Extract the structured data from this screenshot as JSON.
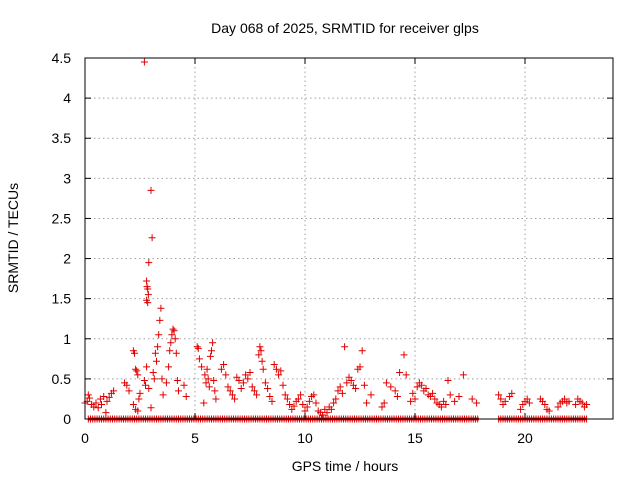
{
  "chart_data": {
    "type": "scatter",
    "title": "Day 068 of 2025, SRMTID for receiver glps",
    "xlabel": "GPS time / hours",
    "ylabel": "SRMTID / TECUs",
    "xlim": [
      0,
      24
    ],
    "ylim": [
      0,
      4.5
    ],
    "x_ticks": [
      0,
      5,
      10,
      15,
      20
    ],
    "y_ticks": [
      0,
      0.5,
      1,
      1.5,
      2,
      2.5,
      3,
      3.5,
      4,
      4.5
    ],
    "grid": true,
    "marker": "+",
    "series_color": "#e00000",
    "baseline_segments": [
      [
        0.15,
        17.9
      ],
      [
        18.8,
        22.8
      ]
    ],
    "baseline_value": 0,
    "series": [
      {
        "name": "SRMTID",
        "points": [
          [
            0.0,
            0.2
          ],
          [
            0.1,
            0.22
          ],
          [
            0.15,
            0.3
          ],
          [
            0.2,
            0.26
          ],
          [
            0.3,
            0.18
          ],
          [
            0.4,
            0.15
          ],
          [
            0.5,
            0.2
          ],
          [
            0.6,
            0.14
          ],
          [
            0.7,
            0.25
          ],
          [
            0.75,
            0.18
          ],
          [
            0.85,
            0.28
          ],
          [
            0.95,
            0.08
          ],
          [
            1.0,
            0.22
          ],
          [
            1.1,
            0.27
          ],
          [
            1.2,
            0.32
          ],
          [
            1.3,
            0.35
          ],
          [
            1.8,
            0.45
          ],
          [
            1.9,
            0.42
          ],
          [
            2.0,
            0.35
          ],
          [
            2.2,
            0.85
          ],
          [
            2.25,
            0.82
          ],
          [
            2.3,
            0.62
          ],
          [
            2.35,
            0.6
          ],
          [
            2.4,
            0.55
          ],
          [
            2.45,
            0.25
          ],
          [
            2.2,
            0.18
          ],
          [
            2.3,
            0.12
          ],
          [
            2.4,
            0.1
          ],
          [
            2.5,
            0.32
          ],
          [
            2.7,
            4.45
          ],
          [
            2.8,
            1.72
          ],
          [
            2.82,
            1.65
          ],
          [
            2.85,
            1.62
          ],
          [
            2.88,
            1.55
          ],
          [
            2.8,
            1.48
          ],
          [
            2.85,
            1.45
          ],
          [
            2.9,
            1.95
          ],
          [
            2.7,
            0.48
          ],
          [
            2.75,
            0.42
          ],
          [
            2.8,
            0.65
          ],
          [
            2.9,
            0.38
          ],
          [
            3.0,
            2.85
          ],
          [
            3.05,
            2.26
          ],
          [
            3.0,
            0.14
          ],
          [
            3.1,
            0.58
          ],
          [
            3.15,
            0.5
          ],
          [
            3.2,
            0.82
          ],
          [
            3.25,
            0.72
          ],
          [
            3.3,
            0.9
          ],
          [
            3.35,
            1.05
          ],
          [
            3.4,
            1.23
          ],
          [
            3.45,
            1.38
          ],
          [
            3.5,
            0.5
          ],
          [
            3.55,
            0.3
          ],
          [
            3.7,
            0.45
          ],
          [
            3.8,
            0.65
          ],
          [
            3.85,
            0.85
          ],
          [
            3.9,
            0.95
          ],
          [
            3.95,
            1.05
          ],
          [
            4.0,
            1.12
          ],
          [
            4.05,
            1.1
          ],
          [
            4.1,
            1.0
          ],
          [
            4.15,
            0.82
          ],
          [
            4.2,
            0.48
          ],
          [
            4.25,
            0.35
          ],
          [
            4.5,
            0.42
          ],
          [
            4.6,
            0.28
          ],
          [
            5.1,
            0.9
          ],
          [
            5.15,
            0.88
          ],
          [
            5.2,
            0.75
          ],
          [
            5.3,
            0.65
          ],
          [
            5.4,
            0.2
          ],
          [
            5.45,
            0.55
          ],
          [
            5.5,
            0.45
          ],
          [
            5.55,
            0.62
          ],
          [
            5.6,
            0.5
          ],
          [
            5.65,
            0.4
          ],
          [
            5.7,
            0.78
          ],
          [
            5.75,
            0.85
          ],
          [
            5.8,
            0.95
          ],
          [
            5.85,
            0.48
          ],
          [
            5.9,
            0.35
          ],
          [
            5.95,
            0.25
          ],
          [
            6.2,
            0.62
          ],
          [
            6.3,
            0.68
          ],
          [
            6.4,
            0.55
          ],
          [
            6.5,
            0.4
          ],
          [
            6.6,
            0.35
          ],
          [
            6.7,
            0.3
          ],
          [
            6.8,
            0.25
          ],
          [
            6.9,
            0.52
          ],
          [
            7.0,
            0.48
          ],
          [
            7.1,
            0.38
          ],
          [
            7.2,
            0.45
          ],
          [
            7.3,
            0.55
          ],
          [
            7.4,
            0.5
          ],
          [
            7.5,
            0.58
          ],
          [
            7.6,
            0.4
          ],
          [
            7.7,
            0.35
          ],
          [
            7.8,
            0.3
          ],
          [
            7.9,
            0.8
          ],
          [
            7.95,
            0.9
          ],
          [
            8.0,
            0.85
          ],
          [
            8.05,
            0.72
          ],
          [
            8.1,
            0.62
          ],
          [
            8.2,
            0.45
          ],
          [
            8.3,
            0.38
          ],
          [
            8.4,
            0.28
          ],
          [
            8.5,
            0.22
          ],
          [
            8.6,
            0.68
          ],
          [
            8.7,
            0.62
          ],
          [
            8.8,
            0.55
          ],
          [
            8.9,
            0.6
          ],
          [
            9.0,
            0.42
          ],
          [
            9.1,
            0.3
          ],
          [
            9.2,
            0.25
          ],
          [
            9.3,
            0.18
          ],
          [
            9.4,
            0.12
          ],
          [
            9.5,
            0.16
          ],
          [
            9.6,
            0.22
          ],
          [
            9.7,
            0.25
          ],
          [
            9.8,
            0.3
          ],
          [
            9.9,
            0.18
          ],
          [
            10.0,
            0.1
          ],
          [
            10.1,
            0.15
          ],
          [
            10.2,
            0.22
          ],
          [
            10.3,
            0.28
          ],
          [
            10.4,
            0.3
          ],
          [
            10.5,
            0.2
          ],
          [
            10.6,
            0.1
          ],
          [
            10.7,
            0.08
          ],
          [
            10.8,
            0.05
          ],
          [
            10.9,
            0.12
          ],
          [
            11.0,
            0.08
          ],
          [
            11.1,
            0.15
          ],
          [
            11.2,
            0.12
          ],
          [
            11.3,
            0.2
          ],
          [
            11.4,
            0.25
          ],
          [
            11.5,
            0.35
          ],
          [
            11.6,
            0.4
          ],
          [
            11.7,
            0.32
          ],
          [
            11.8,
            0.9
          ],
          [
            11.9,
            0.45
          ],
          [
            12.0,
            0.52
          ],
          [
            12.1,
            0.48
          ],
          [
            12.2,
            0.42
          ],
          [
            12.3,
            0.38
          ],
          [
            12.4,
            0.62
          ],
          [
            12.5,
            0.65
          ],
          [
            12.6,
            0.85
          ],
          [
            12.7,
            0.42
          ],
          [
            12.8,
            0.2
          ],
          [
            13.0,
            0.3
          ],
          [
            13.5,
            0.15
          ],
          [
            13.6,
            0.2
          ],
          [
            13.7,
            0.45
          ],
          [
            13.9,
            0.4
          ],
          [
            14.1,
            0.35
          ],
          [
            14.2,
            0.28
          ],
          [
            14.3,
            0.58
          ],
          [
            14.5,
            0.8
          ],
          [
            14.6,
            0.55
          ],
          [
            14.8,
            0.22
          ],
          [
            14.9,
            0.32
          ],
          [
            15.0,
            0.25
          ],
          [
            15.1,
            0.4
          ],
          [
            15.2,
            0.45
          ],
          [
            15.3,
            0.42
          ],
          [
            15.4,
            0.35
          ],
          [
            15.5,
            0.38
          ],
          [
            15.6,
            0.3
          ],
          [
            15.7,
            0.28
          ],
          [
            15.8,
            0.32
          ],
          [
            15.9,
            0.25
          ],
          [
            16.0,
            0.2
          ],
          [
            16.1,
            0.18
          ],
          [
            16.2,
            0.15
          ],
          [
            16.3,
            0.22
          ],
          [
            16.4,
            0.18
          ],
          [
            16.5,
            0.48
          ],
          [
            16.6,
            0.3
          ],
          [
            16.8,
            0.22
          ],
          [
            17.0,
            0.28
          ],
          [
            17.2,
            0.55
          ],
          [
            17.6,
            0.25
          ],
          [
            17.8,
            0.2
          ],
          [
            18.8,
            0.3
          ],
          [
            18.9,
            0.25
          ],
          [
            19.0,
            0.18
          ],
          [
            19.1,
            0.22
          ],
          [
            19.3,
            0.28
          ],
          [
            19.4,
            0.32
          ],
          [
            19.8,
            0.12
          ],
          [
            19.9,
            0.18
          ],
          [
            20.0,
            0.22
          ],
          [
            20.1,
            0.25
          ],
          [
            20.2,
            0.2
          ],
          [
            20.7,
            0.25
          ],
          [
            20.8,
            0.22
          ],
          [
            20.9,
            0.18
          ],
          [
            21.0,
            0.12
          ],
          [
            21.1,
            0.1
          ],
          [
            21.5,
            0.15
          ],
          [
            21.6,
            0.2
          ],
          [
            21.7,
            0.22
          ],
          [
            21.8,
            0.25
          ],
          [
            21.9,
            0.2
          ],
          [
            22.0,
            0.22
          ],
          [
            22.3,
            0.18
          ],
          [
            22.4,
            0.25
          ],
          [
            22.5,
            0.22
          ],
          [
            22.6,
            0.2
          ],
          [
            22.7,
            0.15
          ],
          [
            22.8,
            0.18
          ]
        ]
      }
    ]
  }
}
